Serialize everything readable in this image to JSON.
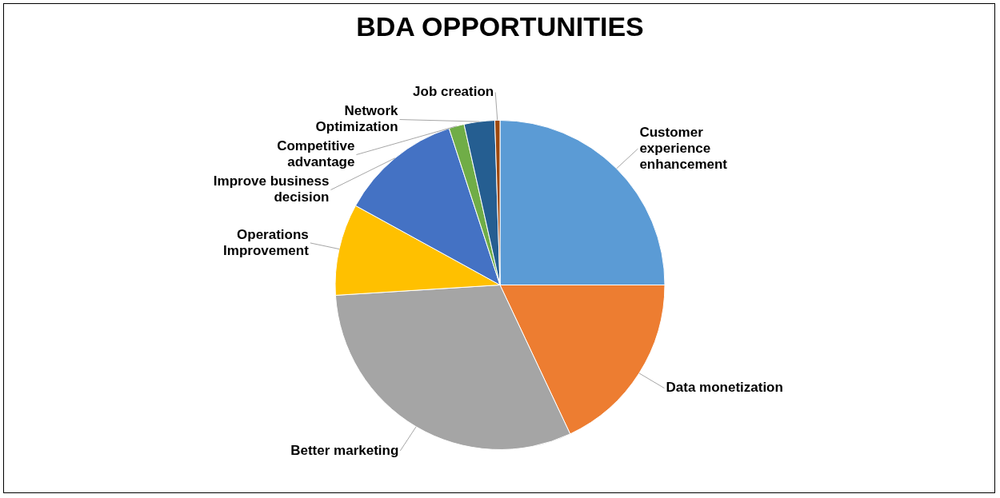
{
  "chart_data": {
    "type": "pie",
    "title": "BDA OPPORTUNITIES",
    "categories": [
      "Customer experience enhancement",
      "Data monetization",
      "Better marketing",
      "Operations Improvement",
      "Improve business decision",
      "Competitive advantage",
      "Network Optimization",
      "Job creation"
    ],
    "values": [
      25,
      18,
      31,
      9,
      12,
      1.5,
      3,
      0.5
    ],
    "colors": [
      "#5b9bd5",
      "#ed7d31",
      "#a5a5a5",
      "#ffc000",
      "#4472c4",
      "#70ad47",
      "#255e91",
      "#9e480e"
    ],
    "legend": false
  }
}
